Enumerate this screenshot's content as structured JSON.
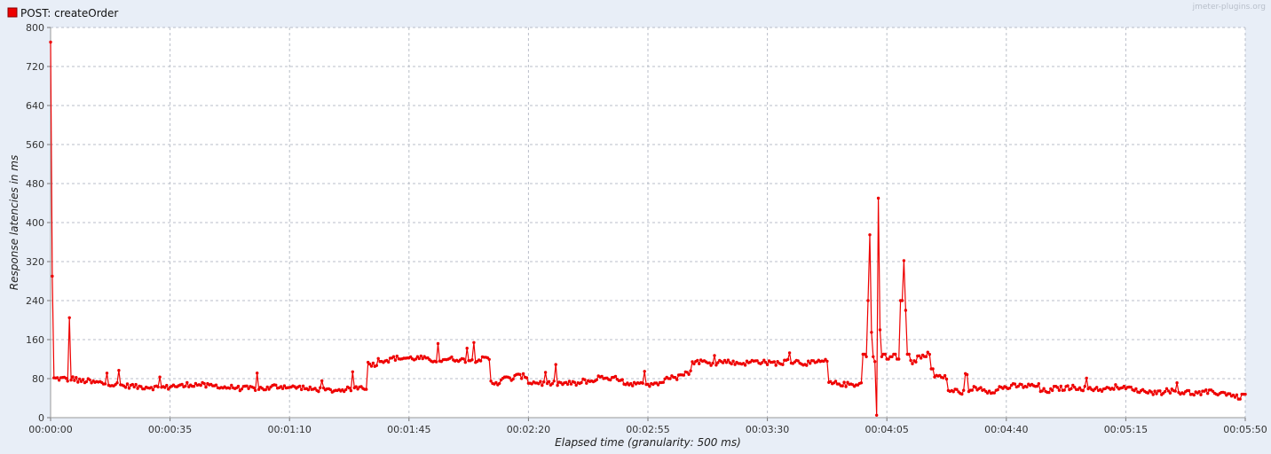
{
  "watermark": "jmeter-plugins.org",
  "colors": {
    "series": "#ee0000",
    "background": "#e8eef7",
    "plot": "#ffffff"
  },
  "chart_data": {
    "type": "line",
    "xlabel": "Elapsed time (granularity: 500 ms)",
    "ylabel": "Response latencies in ms",
    "x_unit": "seconds",
    "xlim": [
      0,
      350
    ],
    "ylim": [
      0,
      800
    ],
    "y_ticks": [
      0,
      80,
      160,
      240,
      320,
      400,
      480,
      560,
      640,
      720,
      800
    ],
    "x_tick_labels": [
      "00:00:00",
      "00:00:35",
      "00:01:10",
      "00:01:45",
      "00:02:20",
      "00:02:55",
      "00:03:30",
      "00:04:05",
      "00:04:40",
      "00:05:15",
      "00:05:50"
    ],
    "grid": true,
    "legend_position": "top-left",
    "series": [
      {
        "name": "POST: createOrder",
        "color": "#ee0000",
        "segments": [
          [
            0,
            0.5,
            770
          ],
          [
            0.5,
            1,
            290
          ],
          [
            1,
            3,
            80
          ],
          [
            3,
            5,
            80
          ],
          [
            5,
            5.5,
            75
          ],
          [
            5.5,
            6,
            205
          ],
          [
            6,
            8,
            80
          ],
          [
            8,
            12,
            75
          ],
          [
            12,
            15,
            72
          ],
          [
            15,
            18,
            70
          ],
          [
            18,
            21,
            68
          ],
          [
            21,
            25,
            65
          ],
          [
            25,
            30,
            63
          ],
          [
            30,
            35,
            62
          ],
          [
            35,
            40,
            65
          ],
          [
            40,
            45,
            68
          ],
          [
            45,
            50,
            65
          ],
          [
            50,
            55,
            62
          ],
          [
            55,
            60,
            60
          ],
          [
            60,
            65,
            60
          ],
          [
            65,
            70,
            64
          ],
          [
            70,
            75,
            62
          ],
          [
            75,
            80,
            58
          ],
          [
            80,
            85,
            56
          ],
          [
            85,
            89,
            58
          ],
          [
            89,
            93,
            62
          ],
          [
            93,
            96,
            110
          ],
          [
            96,
            100,
            118
          ],
          [
            100,
            105,
            122
          ],
          [
            105,
            110,
            122
          ],
          [
            110,
            115,
            118
          ],
          [
            115,
            120,
            120
          ],
          [
            120,
            125,
            118
          ],
          [
            125,
            129,
            120
          ],
          [
            129,
            132,
            72
          ],
          [
            132,
            136,
            80
          ],
          [
            136,
            140,
            85
          ],
          [
            140,
            144,
            72
          ],
          [
            144,
            148,
            70
          ],
          [
            148,
            152,
            70
          ],
          [
            152,
            156,
            70
          ],
          [
            156,
            160,
            75
          ],
          [
            160,
            164,
            82
          ],
          [
            164,
            168,
            80
          ],
          [
            168,
            172,
            70
          ],
          [
            172,
            176,
            68
          ],
          [
            176,
            180,
            72
          ],
          [
            180,
            184,
            82
          ],
          [
            184,
            188,
            92
          ],
          [
            188,
            192,
            115
          ],
          [
            192,
            196,
            112
          ],
          [
            196,
            200,
            115
          ],
          [
            200,
            205,
            112
          ],
          [
            205,
            210,
            115
          ],
          [
            210,
            215,
            112
          ],
          [
            215,
            220,
            115
          ],
          [
            220,
            225,
            112
          ],
          [
            225,
            228,
            115
          ],
          [
            228,
            232,
            70
          ],
          [
            232,
            236,
            68
          ],
          [
            236,
            238,
            70
          ],
          [
            238,
            239,
            130
          ],
          [
            239,
            239.5,
            125
          ],
          [
            239.5,
            240,
            240
          ],
          [
            240,
            240.5,
            375
          ],
          [
            240.5,
            241,
            175
          ],
          [
            241,
            241.5,
            125
          ],
          [
            241.5,
            242,
            115
          ],
          [
            242,
            242.5,
            5
          ],
          [
            242.5,
            243,
            450
          ],
          [
            243,
            243.5,
            180
          ],
          [
            243.5,
            244,
            125
          ],
          [
            244,
            245,
            130
          ],
          [
            245,
            246,
            120
          ],
          [
            246,
            247,
            125
          ],
          [
            247,
            248,
            130
          ],
          [
            248,
            249,
            120
          ],
          [
            249,
            250,
            240
          ],
          [
            250,
            250.5,
            322
          ],
          [
            250.5,
            251,
            220
          ],
          [
            251,
            252,
            130
          ],
          [
            252,
            254,
            115
          ],
          [
            254,
            256,
            125
          ],
          [
            256,
            258,
            130
          ],
          [
            258,
            259,
            100
          ],
          [
            259,
            261,
            85
          ],
          [
            261,
            263,
            82
          ],
          [
            263,
            266,
            55
          ],
          [
            266,
            270,
            52
          ],
          [
            270,
            274,
            60
          ],
          [
            274,
            278,
            55
          ],
          [
            278,
            282,
            62
          ],
          [
            282,
            286,
            65
          ],
          [
            286,
            290,
            65
          ],
          [
            290,
            294,
            55
          ],
          [
            294,
            298,
            60
          ],
          [
            298,
            302,
            62
          ],
          [
            302,
            306,
            60
          ],
          [
            306,
            310,
            58
          ],
          [
            310,
            314,
            63
          ],
          [
            314,
            318,
            60
          ],
          [
            318,
            322,
            55
          ],
          [
            322,
            326,
            52
          ],
          [
            326,
            330,
            55
          ],
          [
            330,
            334,
            52
          ],
          [
            334,
            338,
            50
          ],
          [
            338,
            342,
            52
          ],
          [
            342,
            346,
            50
          ],
          [
            346,
            348,
            45
          ],
          [
            348,
            349,
            38
          ],
          [
            349,
            350,
            48
          ]
        ]
      }
    ]
  }
}
